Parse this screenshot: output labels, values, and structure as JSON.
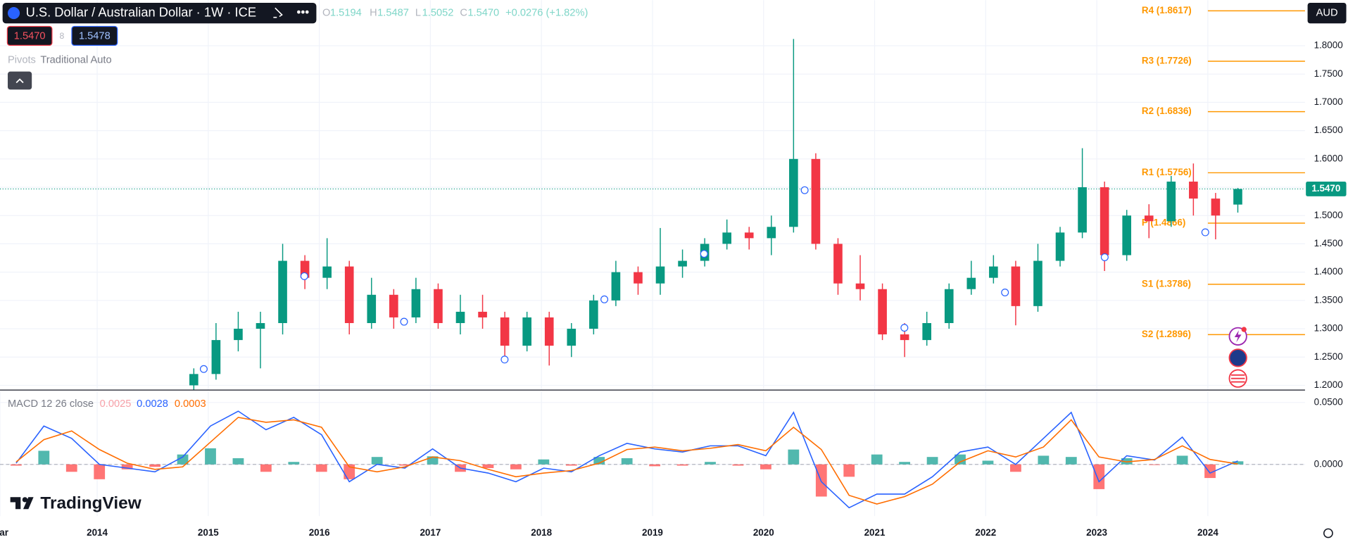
{
  "ui": {
    "open_label": "O",
    "open": "1.5194",
    "high_label": "H",
    "high": "1.5487",
    "low_label": "L",
    "low": "1.5052",
    "close_label": "C",
    "close": "1.5470",
    "change": "+0.0276 (+1.82%)",
    "sell_price": "1.5470",
    "spread": "8",
    "buy_price": "1.5478",
    "indicator_name": "Pivots",
    "indicator_args": "Traditional Auto",
    "currency": "AUD",
    "logo": "TradingView"
  },
  "chart_data": [
    {
      "type": "candlestick",
      "title": "U.S. Dollar / Australian Dollar · 1W · ICE",
      "x": [
        2014.87,
        2015.07,
        2015.27,
        2015.47,
        2015.67,
        2015.87,
        2016.07,
        2016.27,
        2016.47,
        2016.67,
        2016.87,
        2017.07,
        2017.27,
        2017.47,
        2017.67,
        2017.87,
        2018.07,
        2018.27,
        2018.47,
        2018.67,
        2018.87,
        2019.07,
        2019.27,
        2019.47,
        2019.67,
        2019.87,
        2020.07,
        2020.27,
        2020.47,
        2020.67,
        2020.87,
        2021.07,
        2021.27,
        2021.47,
        2021.67,
        2021.87,
        2022.07,
        2022.27,
        2022.47,
        2022.67,
        2022.87,
        2023.07,
        2023.27,
        2023.47,
        2023.67,
        2023.87,
        2024.07,
        2024.27
      ],
      "open": [
        1.2,
        1.22,
        1.28,
        1.3,
        1.31,
        1.42,
        1.39,
        1.41,
        1.31,
        1.36,
        1.32,
        1.37,
        1.31,
        1.33,
        1.32,
        1.27,
        1.32,
        1.27,
        1.3,
        1.35,
        1.4,
        1.38,
        1.41,
        1.42,
        1.45,
        1.47,
        1.46,
        1.48,
        1.6,
        1.45,
        1.38,
        1.37,
        1.29,
        1.28,
        1.31,
        1.37,
        1.39,
        1.41,
        1.34,
        1.42,
        1.47,
        1.55,
        1.43,
        1.5,
        1.49,
        1.56,
        1.53,
        1.5194
      ],
      "high": [
        1.23,
        1.31,
        1.33,
        1.33,
        1.45,
        1.43,
        1.46,
        1.42,
        1.39,
        1.37,
        1.39,
        1.38,
        1.36,
        1.36,
        1.33,
        1.33,
        1.33,
        1.31,
        1.36,
        1.42,
        1.41,
        1.478,
        1.44,
        1.46,
        1.493,
        1.48,
        1.5,
        1.812,
        1.61,
        1.46,
        1.43,
        1.38,
        1.31,
        1.33,
        1.38,
        1.42,
        1.43,
        1.42,
        1.45,
        1.48,
        1.619,
        1.56,
        1.51,
        1.52,
        1.57,
        1.592,
        1.54,
        1.5487
      ],
      "low": [
        1.19,
        1.21,
        1.26,
        1.23,
        1.29,
        1.37,
        1.37,
        1.29,
        1.3,
        1.3,
        1.31,
        1.3,
        1.29,
        1.3,
        1.25,
        1.26,
        1.235,
        1.25,
        1.29,
        1.34,
        1.36,
        1.36,
        1.39,
        1.41,
        1.44,
        1.44,
        1.43,
        1.47,
        1.44,
        1.36,
        1.35,
        1.28,
        1.25,
        1.27,
        1.3,
        1.36,
        1.38,
        1.306,
        1.33,
        1.41,
        1.46,
        1.402,
        1.42,
        1.46,
        1.48,
        1.5,
        1.458,
        1.5052
      ],
      "close": [
        1.22,
        1.28,
        1.3,
        1.31,
        1.42,
        1.39,
        1.41,
        1.31,
        1.36,
        1.32,
        1.37,
        1.31,
        1.33,
        1.32,
        1.27,
        1.32,
        1.27,
        1.3,
        1.35,
        1.4,
        1.38,
        1.41,
        1.42,
        1.45,
        1.47,
        1.46,
        1.48,
        1.6,
        1.45,
        1.38,
        1.37,
        1.29,
        1.28,
        1.31,
        1.37,
        1.39,
        1.41,
        1.34,
        1.42,
        1.47,
        1.55,
        1.43,
        1.5,
        1.49,
        1.56,
        1.53,
        1.5,
        1.547
      ],
      "color_up": "#089981",
      "color_down": "#f23645",
      "xlim": [
        2013.125,
        2024.875
      ],
      "xticks": [
        2014,
        2015,
        2016,
        2017,
        2018,
        2019,
        2020,
        2021,
        2022,
        2023,
        2024
      ],
      "ylim": [
        1.1924,
        1.8805
      ],
      "yticks": [
        {
          "value": 1.2,
          "label": "1.2000"
        },
        {
          "value": 1.25,
          "label": "1.2500"
        },
        {
          "value": 1.3,
          "label": "1.3000"
        },
        {
          "value": 1.35,
          "label": "1.3500"
        },
        {
          "value": 1.4,
          "label": "1.4000"
        },
        {
          "value": 1.45,
          "label": "1.4500"
        },
        {
          "value": 1.5,
          "label": "1.5000"
        },
        {
          "value": 1.55,
          "label": "1.5500"
        },
        {
          "value": 1.6,
          "label": "1.6000"
        },
        {
          "value": 1.65,
          "label": "1.6500"
        },
        {
          "value": 1.7,
          "label": "1.7000"
        },
        {
          "value": 1.75,
          "label": "1.7500"
        },
        {
          "value": 1.8,
          "label": "1.8000"
        }
      ],
      "grid": true,
      "pivots": {
        "color": "#ff9800",
        "levels": [
          {
            "value": 1.8617,
            "label": "R4 (1.8617)"
          },
          {
            "value": 1.7726,
            "label": "R3 (1.7726)"
          },
          {
            "value": 1.6836,
            "label": "R2 (1.6836)"
          },
          {
            "value": 1.5756,
            "label": "R1 (1.5756)"
          },
          {
            "value": 1.4866,
            "label": "P (1.4866)"
          },
          {
            "value": 1.3786,
            "label": "S1 (1.3786)"
          },
          {
            "value": 1.2896,
            "label": "S2 (1.2896)"
          }
        ]
      },
      "last_price": {
        "value": 1.547,
        "label": "1.5470",
        "color": "#089981"
      }
    },
    {
      "type": "line",
      "title": "MACD 12 26 close",
      "x": [
        2013.27,
        2013.52,
        2013.77,
        2014.02,
        2014.27,
        2014.52,
        2014.77,
        2015.02,
        2015.27,
        2015.52,
        2015.77,
        2016.02,
        2016.27,
        2016.52,
        2016.77,
        2017.02,
        2017.27,
        2017.52,
        2017.77,
        2018.02,
        2018.27,
        2018.52,
        2018.77,
        2019.02,
        2019.27,
        2019.52,
        2019.77,
        2020.02,
        2020.27,
        2020.52,
        2020.77,
        2021.02,
        2021.27,
        2021.52,
        2021.77,
        2022.02,
        2022.27,
        2022.52,
        2022.77,
        2023.02,
        2023.27,
        2023.52,
        2023.77,
        2024.02,
        2024.27
      ],
      "series": [
        {
          "type": "bar",
          "color_up": "#26a69a",
          "color_down": "#ff5252",
          "color": "#f7a1a8",
          "values": [
            -0.001,
            0.011,
            -0.006,
            -0.012,
            -0.004,
            -0.002,
            0.008,
            0.013,
            0.005,
            -0.006,
            0.002,
            -0.006,
            -0.012,
            0.006,
            -0.001,
            0.0065,
            -0.006,
            -0.003,
            -0.004,
            0.004,
            -0.001,
            0.006,
            0.005,
            -0.0015,
            -0.001,
            0.002,
            -0.001,
            -0.004,
            0.012,
            -0.026,
            -0.01,
            0.008,
            0.002,
            0.006,
            0.008,
            0.003,
            -0.006,
            0.007,
            0.006,
            -0.02,
            0.005,
            -0.0005,
            0.007,
            -0.011,
            0.0025
          ]
        },
        {
          "color": "#2962ff",
          "values": [
            0.001,
            0.031,
            0.021,
            0.0,
            -0.003,
            -0.006,
            0.006,
            0.031,
            0.043,
            0.028,
            0.038,
            0.024,
            -0.014,
            0.0,
            -0.003,
            0.0125,
            -0.003,
            -0.007,
            -0.014,
            -0.003,
            -0.006,
            0.007,
            0.017,
            0.0125,
            0.01,
            0.015,
            0.015,
            0.007,
            0.042,
            -0.014,
            -0.035,
            -0.024,
            -0.024,
            -0.01,
            0.01,
            0.014,
            0.0,
            0.021,
            0.042,
            -0.014,
            0.007,
            0.0035,
            0.022,
            -0.007,
            0.0028
          ]
        },
        {
          "color": "#ff6d00",
          "values": [
            0.002,
            0.02,
            0.027,
            0.012,
            0.001,
            -0.004,
            -0.002,
            0.018,
            0.038,
            0.034,
            0.036,
            0.03,
            -0.002,
            -0.006,
            -0.002,
            0.006,
            0.003,
            -0.004,
            -0.01,
            -0.007,
            -0.005,
            0.001,
            0.012,
            0.014,
            0.011,
            0.013,
            0.016,
            0.011,
            0.03,
            0.012,
            -0.025,
            -0.032,
            -0.026,
            -0.016,
            0.002,
            0.011,
            0.006,
            0.014,
            0.036,
            0.006,
            0.002,
            0.004,
            0.015,
            0.004,
            0.0003
          ]
        }
      ],
      "xlim": [
        2013.125,
        2024.875
      ],
      "xticks": [
        {
          "value": 2013.125,
          "label": "Mar"
        },
        2014,
        2015,
        2016,
        2017,
        2018,
        2019,
        2020,
        2021,
        2022,
        2023,
        2024
      ],
      "ylim": [
        -0.0417,
        0.059
      ],
      "yticks": [
        {
          "value": 0,
          "label": "0.0000"
        },
        {
          "value": 0.05,
          "label": "0.0500"
        }
      ],
      "grid": true
    }
  ]
}
